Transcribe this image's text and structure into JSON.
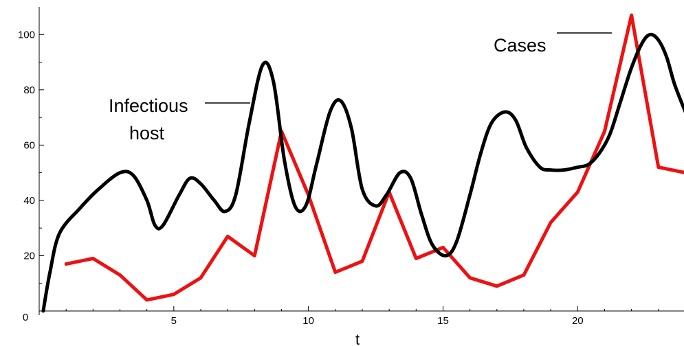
{
  "chart_data": {
    "type": "line",
    "xlabel": "t",
    "ylabel": "",
    "xlim": [
      0,
      24
    ],
    "ylim": [
      0,
      110
    ],
    "xticks": [
      0,
      5,
      10,
      15,
      20
    ],
    "yticks": [
      0,
      20,
      40,
      60,
      80,
      100
    ],
    "grid": false,
    "series": [
      {
        "name": "Cases",
        "color": "#ee1111",
        "smooth": false,
        "x": [
          1,
          2,
          3,
          4,
          5,
          6,
          7,
          8,
          9,
          10,
          11,
          12,
          13,
          14,
          15,
          16,
          17,
          18,
          19,
          20,
          21,
          22,
          23,
          24
        ],
        "y": [
          17,
          19,
          13,
          4,
          6,
          12,
          27,
          20,
          65,
          42,
          14,
          18,
          43,
          19,
          23,
          12,
          9,
          13,
          32,
          43,
          65,
          107,
          52,
          50
        ]
      },
      {
        "name": "Infectious host",
        "color": "#000000",
        "smooth": true,
        "x": [
          0.15,
          0.4,
          0.75,
          1.5,
          2.2,
          3.0,
          3.5,
          4.0,
          4.3,
          4.6,
          5.2,
          5.6,
          6.0,
          6.5,
          6.9,
          7.3,
          7.8,
          8.3,
          8.7,
          9.1,
          9.5,
          9.9,
          10.3,
          10.8,
          11.2,
          11.6,
          12.0,
          12.5,
          12.9,
          13.4,
          13.8,
          14.2,
          14.6,
          15.1,
          15.5,
          16.0,
          16.4,
          16.8,
          17.3,
          17.7,
          18.1,
          18.6,
          19.0,
          19.5,
          20.0,
          20.4,
          20.8,
          21.2,
          21.6,
          22.0,
          22.4,
          22.7,
          23.0,
          23.3,
          23.6,
          24.0
        ],
        "y": [
          0,
          14,
          28,
          37,
          44,
          50,
          49,
          40,
          31,
          31,
          42,
          48,
          46,
          40,
          36,
          42,
          68,
          89,
          83,
          55,
          38,
          38,
          53,
          72,
          76,
          66,
          44,
          38,
          42,
          50,
          48,
          35,
          24,
          20,
          25,
          42,
          57,
          68,
          72,
          69,
          59,
          52,
          51,
          51,
          52,
          53,
          57,
          64,
          76,
          88,
          97,
          100,
          98,
          92,
          82,
          72
        ]
      }
    ],
    "annotations": [
      {
        "text": "Cases",
        "series": "Cases"
      },
      {
        "text_line1": "Infectious",
        "text_line2": "host",
        "series": "Infectious host"
      }
    ]
  }
}
